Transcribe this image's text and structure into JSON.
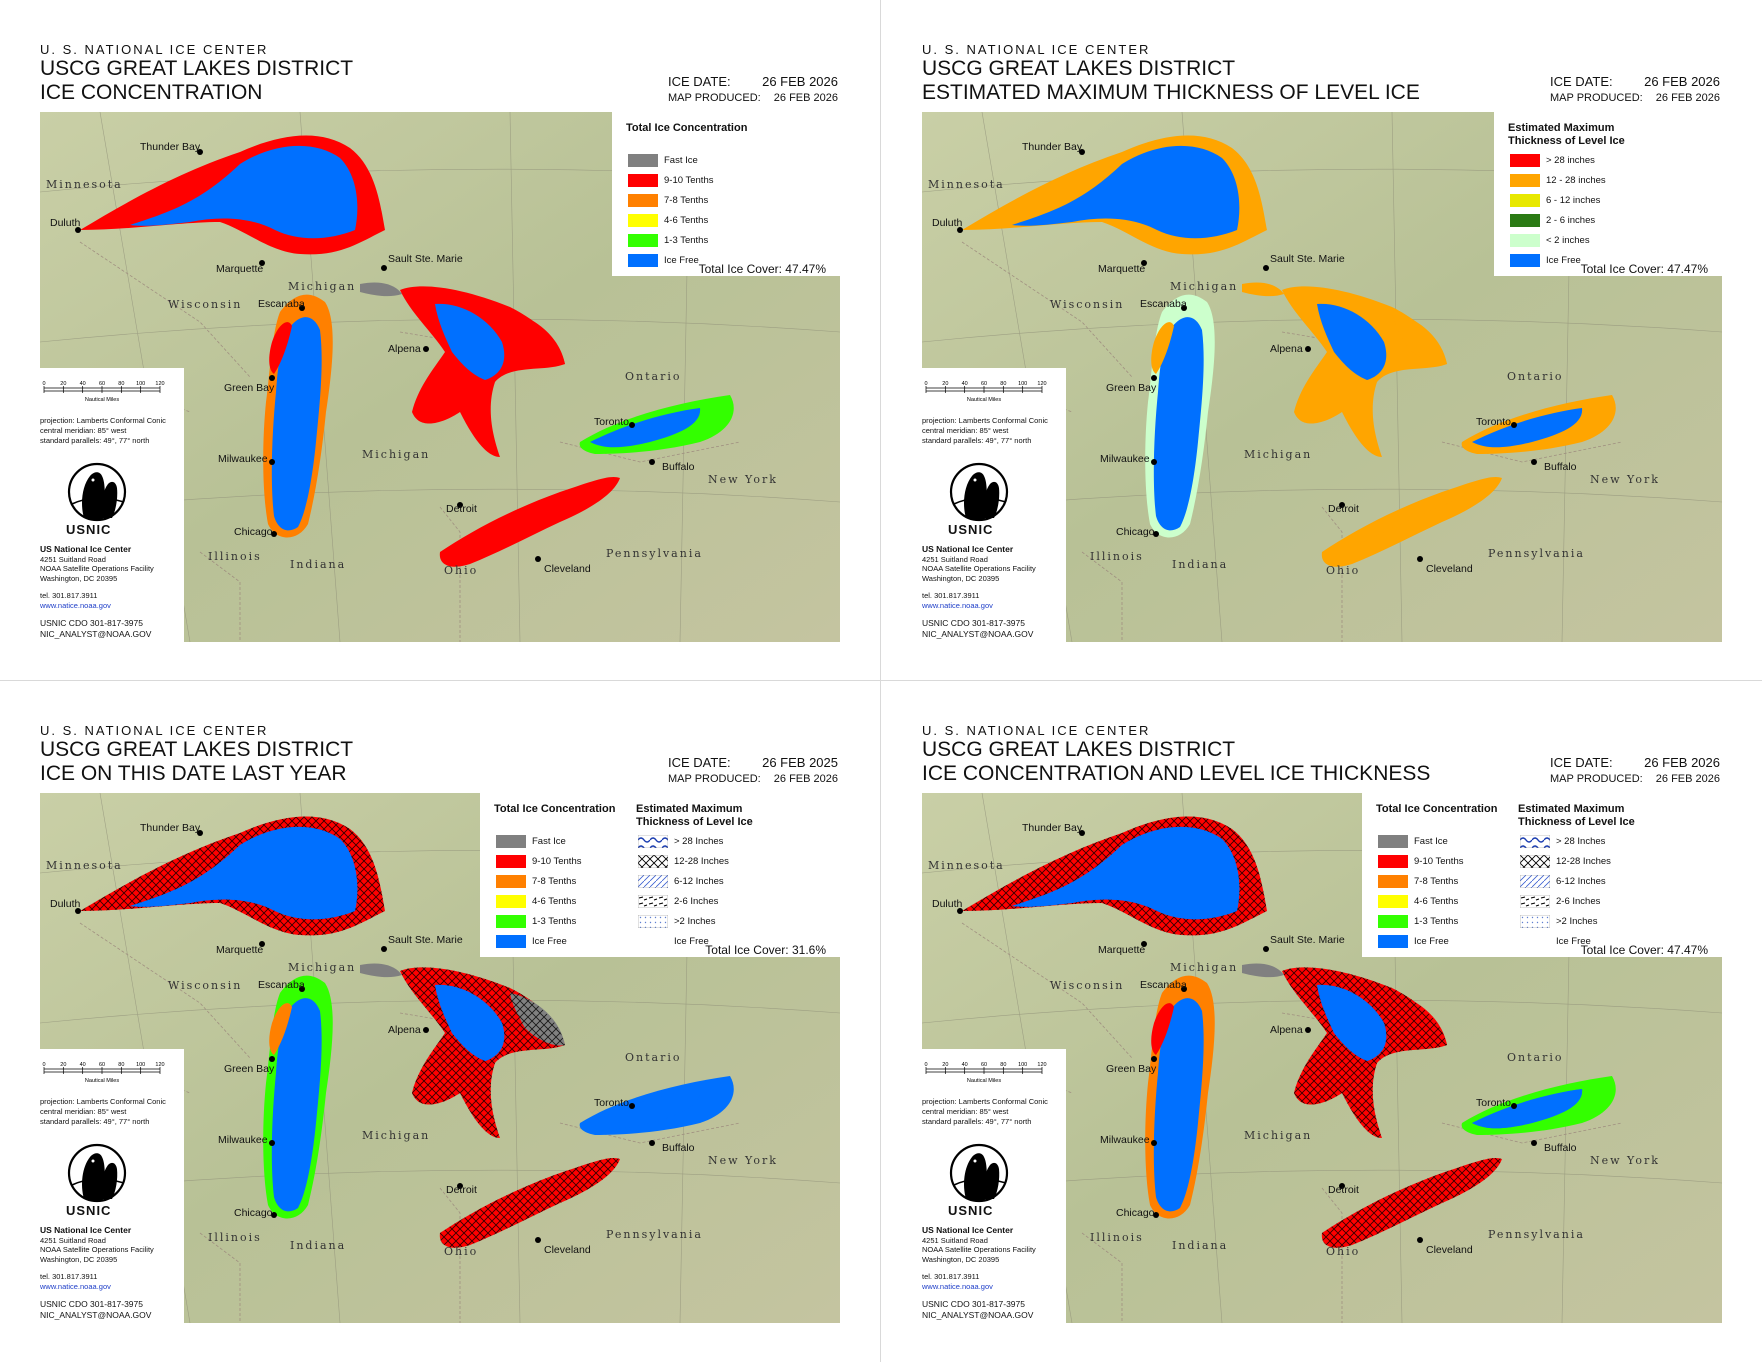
{
  "common": {
    "agency": "U. S. NATIONAL ICE CENTER",
    "district": "USCG GREAT LAKES DISTRICT",
    "ice_date_label": "ICE DATE:",
    "map_produced_label": "MAP PRODUCED:",
    "projection": [
      "projection: Lamberts Conformal Conic",
      "central meridian: 85° west",
      "standard parallels: 49°, 77° north"
    ],
    "scale_ticks": [
      "0",
      "20",
      "40",
      "60",
      "80",
      "100",
      "120"
    ],
    "scale_unit": "Nautical Miles",
    "logo_text": "USNIC",
    "org_name": "US National Ice Center",
    "address": [
      "4251 Suitland Road",
      "NOAA Satellite Operations Facility",
      "Washington, DC  20395"
    ],
    "tel": "tel. 301.817.3911",
    "website": "www.natice.noaa.gov",
    "cdo": "USNIC CDO 301-817-3975",
    "email": "NIC_ANALYST@NOAA.GOV",
    "cities": {
      "thunder_bay": "Thunder Bay",
      "duluth": "Duluth",
      "marquette": "Marquette",
      "sault": "Sault Ste. Marie",
      "escanaba": "Escanaba",
      "green_bay": "Green Bay",
      "alpena": "Alpena",
      "milwaukee": "Milwaukee",
      "chicago": "Chicago",
      "toronto": "Toronto",
      "buffalo": "Buffalo",
      "detroit": "Detroit",
      "cleveland": "Cleveland"
    },
    "regions": {
      "minnesota": "Minnesota",
      "wisconsin": "Wisconsin",
      "michigan_up": "Michigan",
      "michigan_lp": "Michigan",
      "ontario": "Ontario",
      "new_york": "New York",
      "pennsylvania": "Pennsylvania",
      "ohio": "Ohio",
      "illinois": "Illinois",
      "indiana": "Indiana"
    },
    "colors": {
      "fast": "#808080",
      "c910": "#ff0000",
      "c78": "#ff8000",
      "c46": "#ffff00",
      "c13": "#33ff00",
      "icefree": "#0070ff",
      "t28": "#ff0000",
      "t12_28": "#ffa500",
      "t6_12": "#e8e800",
      "t2_6": "#2a7a14",
      "tlt2": "#ccffcc"
    }
  },
  "panels": [
    {
      "title": "ICE CONCENTRATION",
      "ice_date": "26 FEB 2026",
      "map_produced": "26 FEB 2026",
      "legend_title": "Total Ice Concentration",
      "legend": [
        "Fast Ice",
        "9-10 Tenths",
        "7-8 Tenths",
        "4-6 Tenths",
        "1-3 Tenths",
        "Ice Free"
      ],
      "total": "Total Ice Cover: 47.47%"
    },
    {
      "title": "ESTIMATED MAXIMUM THICKNESS OF LEVEL ICE",
      "ice_date": "26 FEB 2026",
      "map_produced": "26 FEB 2026",
      "legend_title": "Estimated Maximum Thickness of Level Ice",
      "legend": [
        "> 28 inches",
        "12 - 28 inches",
        "6 - 12 inches",
        "2 - 6 inches",
        "< 2 inches",
        "Ice Free"
      ],
      "total": "Total Ice Cover: 47.47%"
    },
    {
      "title": "ICE ON THIS DATE LAST YEAR",
      "ice_date": "26 FEB 2025",
      "map_produced": "26 FEB 2026",
      "legend_title": "Total Ice Concentration",
      "legend": [
        "Fast Ice",
        "9-10 Tenths",
        "7-8 Tenths",
        "4-6 Tenths",
        "1-3 Tenths",
        "Ice Free"
      ],
      "legend2_title": "Estimated Maximum Thickness of Level Ice",
      "legend2": [
        "> 28 Inches",
        "12-28 Inches",
        "6-12 Inches",
        "2-6 Inches",
        ">2 Inches",
        "Ice Free"
      ],
      "total": "Total Ice Cover: 31.6%"
    },
    {
      "title": "ICE CONCENTRATION AND LEVEL ICE THICKNESS",
      "ice_date": "26 FEB 2026",
      "map_produced": "26 FEB 2026",
      "legend_title": "Total Ice Concentration",
      "legend": [
        "Fast Ice",
        "9-10 Tenths",
        "7-8 Tenths",
        "4-6 Tenths",
        "1-3 Tenths",
        "Ice Free"
      ],
      "legend2_title": "Estimated Maximum Thickness of Level Ice",
      "legend2": [
        "> 28 Inches",
        "12-28 Inches",
        "6-12 Inches",
        "2-6 Inches",
        ">2 Inches",
        "Ice Free"
      ],
      "total": "Total Ice Cover: 47.47%"
    }
  ]
}
